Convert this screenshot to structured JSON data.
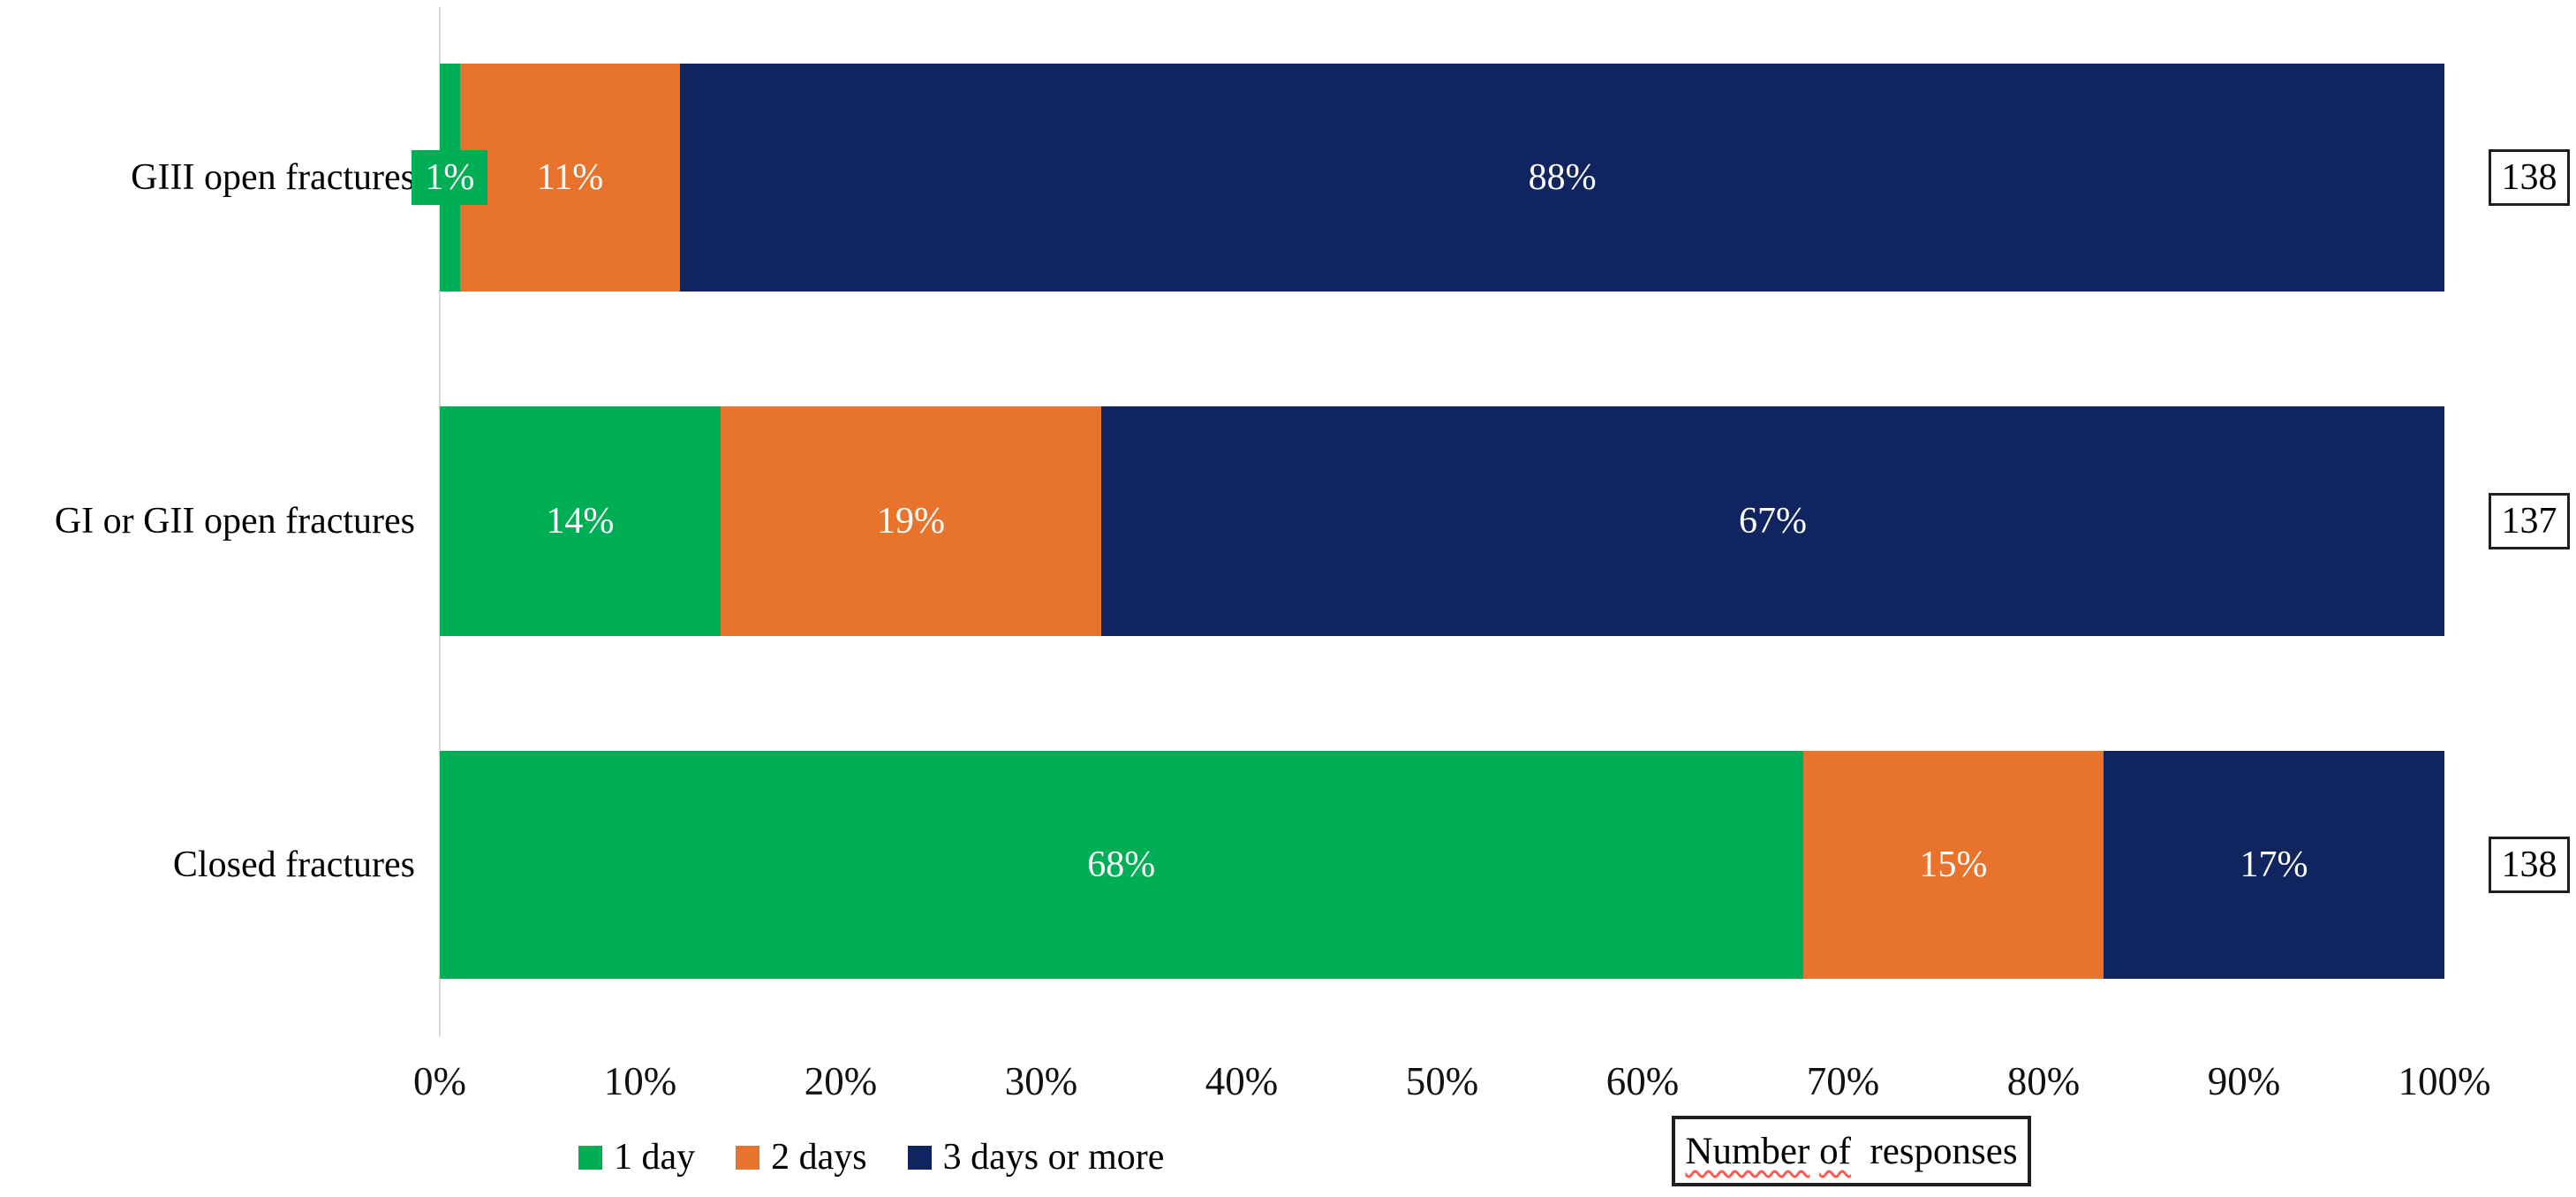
{
  "chart_data": {
    "type": "bar",
    "orientation": "horizontal",
    "stacked_100_percent": true,
    "title": "",
    "xlabel": "",
    "ylabel": "",
    "grid": false,
    "legend_position": "bottom-left",
    "categories": [
      "GIII open fractures",
      "GI or GII open fractures",
      "Closed fractures"
    ],
    "series": [
      {
        "name": "1 day",
        "color": "#00AE55",
        "values": [
          1,
          14,
          68
        ]
      },
      {
        "name": "2 days",
        "color": "#E8732D",
        "values": [
          11,
          19,
          15
        ]
      },
      {
        "name": "3 days or more",
        "color": "#102560",
        "values": [
          88,
          67,
          17
        ]
      }
    ],
    "segment_labels": [
      [
        "1%",
        "11%",
        "88%"
      ],
      [
        "14%",
        "19%",
        "67%"
      ],
      [
        "68%",
        "15%",
        "17%"
      ]
    ],
    "number_of_responses": [
      "138",
      "137",
      "138"
    ],
    "x_axis": {
      "min": 0,
      "max": 100,
      "tick_labels": [
        "0%",
        "10%",
        "20%",
        "30%",
        "40%",
        "50%",
        "60%",
        "70%",
        "80%",
        "90%",
        "100%"
      ]
    }
  },
  "responses_box": {
    "word1": "Number",
    "word2": "of",
    "rest": "responses"
  },
  "colors": {
    "data_label_text": "#FFFFFF",
    "axis_line": "#D8D8D8",
    "box_border": "#1F1F1F",
    "spellcheck_squiggle": "#FF5A52",
    "background": "#FFFFFF"
  }
}
